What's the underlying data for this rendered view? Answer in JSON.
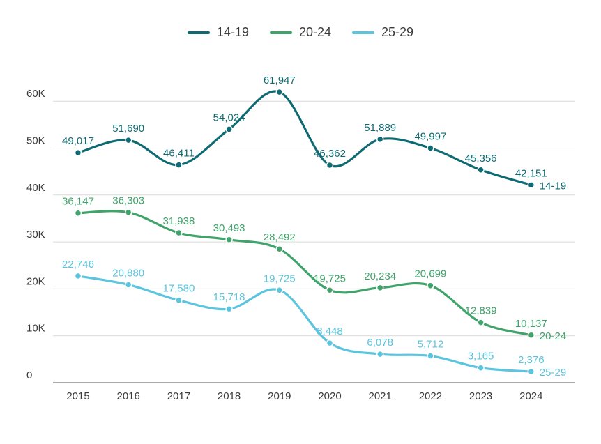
{
  "chart_data": {
    "type": "line",
    "x": [
      "2015",
      "2016",
      "2017",
      "2018",
      "2019",
      "2020",
      "2021",
      "2022",
      "2023",
      "2024"
    ],
    "ylim": [
      0,
      60000
    ],
    "yticks": [
      0,
      10000,
      20000,
      30000,
      40000,
      50000,
      60000
    ],
    "ytick_labels": [
      "0",
      "10K",
      "20K",
      "30K",
      "40K",
      "50K",
      "60K"
    ],
    "grid": true,
    "legend_position": "top-center",
    "series": [
      {
        "name": "14-19",
        "color": "#0f6b73",
        "values": [
          49017,
          51690,
          46411,
          54024,
          61947,
          46362,
          51889,
          49997,
          45356,
          42151
        ],
        "labels": [
          "49,017",
          "51,690",
          "46,411",
          "54,024",
          "61,947",
          "46,362",
          "51,889",
          "49,997",
          "45,356",
          "42,151"
        ]
      },
      {
        "name": "20-24",
        "color": "#3fa36a",
        "values": [
          36147,
          36303,
          31938,
          30493,
          28492,
          19725,
          20234,
          20699,
          12839,
          10137
        ],
        "labels": [
          "36,147",
          "36,303",
          "31,938",
          "30,493",
          "28,492",
          "19,725",
          "20,234",
          "20,699",
          "12,839",
          "10,137"
        ]
      },
      {
        "name": "25-29",
        "color": "#5bc4de",
        "values": [
          22746,
          20880,
          17580,
          15718,
          19725,
          8448,
          6078,
          5712,
          3165,
          2376
        ],
        "labels": [
          "22,746",
          "20,880",
          "17,580",
          "15,718",
          "19,725",
          "8,448",
          "6,078",
          "5,712",
          "3,165",
          "2,376"
        ]
      }
    ]
  }
}
